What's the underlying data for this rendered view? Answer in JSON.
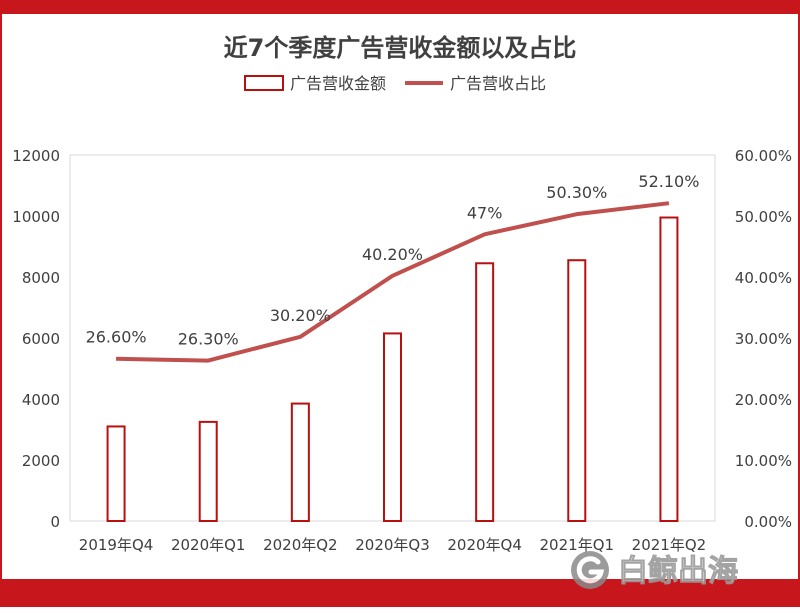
{
  "title": "近7个季度广告营收金额以及占比",
  "colors": {
    "frame": "#c8161d",
    "bar_stroke": "#b80f0f",
    "line": "#c0504d",
    "text": "#404040",
    "grid": "#d9d9d9"
  },
  "watermark": {
    "text": "白鲸出海",
    "icon": "g-logo-icon"
  },
  "chart_data": {
    "type": "bar+line",
    "title": "近7个季度广告营收金额以及占比",
    "categories": [
      "2019年Q4",
      "2020年Q1",
      "2020年Q2",
      "2020年Q3",
      "2020年Q4",
      "2021年Q1",
      "2021年Q2"
    ],
    "series": [
      {
        "name": "广告营收金额",
        "type": "bar",
        "axis": "left",
        "values": [
          3100,
          3250,
          3850,
          6150,
          8450,
          8550,
          9950
        ]
      },
      {
        "name": "广告营收占比",
        "type": "line",
        "axis": "right",
        "values": [
          26.6,
          26.3,
          30.2,
          40.2,
          47,
          50.3,
          52.1
        ],
        "labels": [
          "26.60%",
          "26.30%",
          "30.20%",
          "40.20%",
          "47%",
          "50.30%",
          "52.10%"
        ]
      }
    ],
    "y_left": {
      "range": [
        0,
        12000
      ],
      "ticks": [
        0,
        2000,
        4000,
        6000,
        8000,
        10000,
        12000
      ],
      "tick_labels": [
        "0",
        "2000",
        "4000",
        "6000",
        "8000",
        "10000",
        "12000"
      ]
    },
    "y_right": {
      "range": [
        0,
        60
      ],
      "ticks": [
        0,
        10,
        20,
        30,
        40,
        50,
        60
      ],
      "tick_labels": [
        "0.00%",
        "10.00%",
        "20.00%",
        "30.00%",
        "40.00%",
        "50.00%",
        "60.00%"
      ]
    },
    "legend_position": "top-center",
    "grid": false
  }
}
